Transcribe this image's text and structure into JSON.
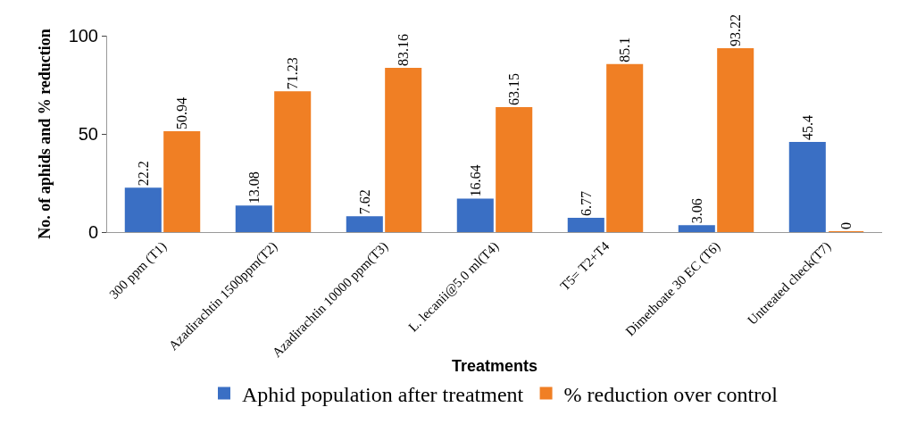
{
  "chart_data": {
    "type": "bar",
    "xlabel": "Treatments",
    "ylabel": "No. of aphids and % reduction",
    "categories": [
      "300 ppm (T1)",
      "Azadirachtin 1500ppm(T2)",
      "Azadirachtin 10000 ppm(T3)",
      "L. lecanii@5.0 ml(T4)",
      "T5= T2+T4",
      "Dimethoate 30 EC (T6)",
      "Untreated check(T7)"
    ],
    "series": [
      {
        "name": "Aphid population after treatment",
        "color": "#3a6fc4",
        "values": [
          22.2,
          13.08,
          7.62,
          16.64,
          6.77,
          3.06,
          45.4
        ]
      },
      {
        "name": "% reduction over control",
        "color": "#f07f24",
        "values": [
          50.94,
          71.23,
          83.16,
          63.15,
          85.1,
          93.22,
          0
        ]
      }
    ],
    "ylim": [
      0,
      100
    ],
    "yticks": [
      0,
      50,
      100
    ],
    "data_labels": true,
    "grid": false,
    "legend": "bottom"
  }
}
